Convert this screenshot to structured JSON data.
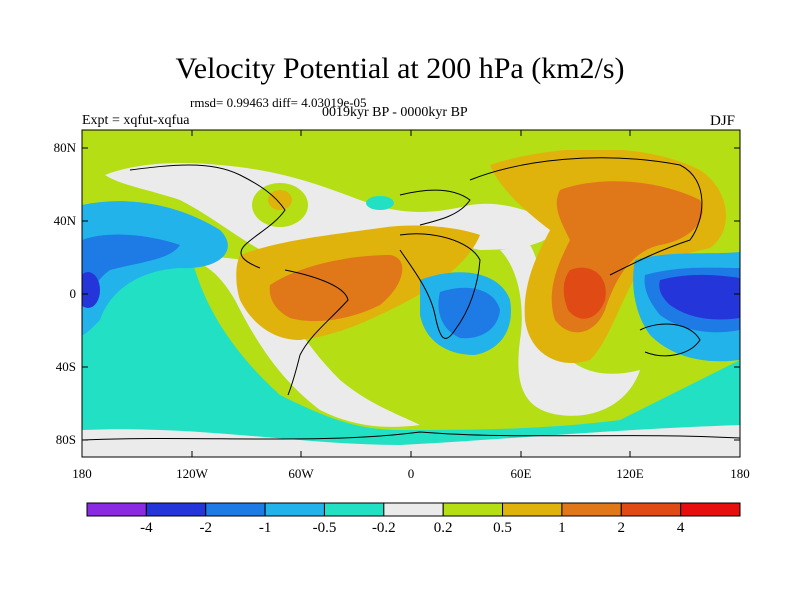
{
  "title": "Velocity Potential at 200 hPa (km2/s)",
  "stats": "rmsd= 0.99463 diff= 4.03019e-05",
  "experiment": "Expt = xqfut-xqfua",
  "period": "0019kyr BP - 0000kyr BP",
  "season": "DJF",
  "lat_labels": [
    "80N",
    "40N",
    "0",
    "40S",
    "80S"
  ],
  "lon_labels": [
    "180",
    "120W",
    "60W",
    "0",
    "60E",
    "120E",
    "180"
  ],
  "colorbar": {
    "colors": [
      "#8a2be2",
      "#2436d9",
      "#1e7be6",
      "#21b3ea",
      "#22e0c4",
      "#ebebeb",
      "#b5de15",
      "#e0b30c",
      "#e0781a",
      "#e04a14",
      "#e60e0e"
    ],
    "labels": [
      "-4",
      "-2",
      "-1",
      "-0.5",
      "-0.2",
      "0.2",
      "0.5",
      "1",
      "2",
      "4"
    ]
  }
}
